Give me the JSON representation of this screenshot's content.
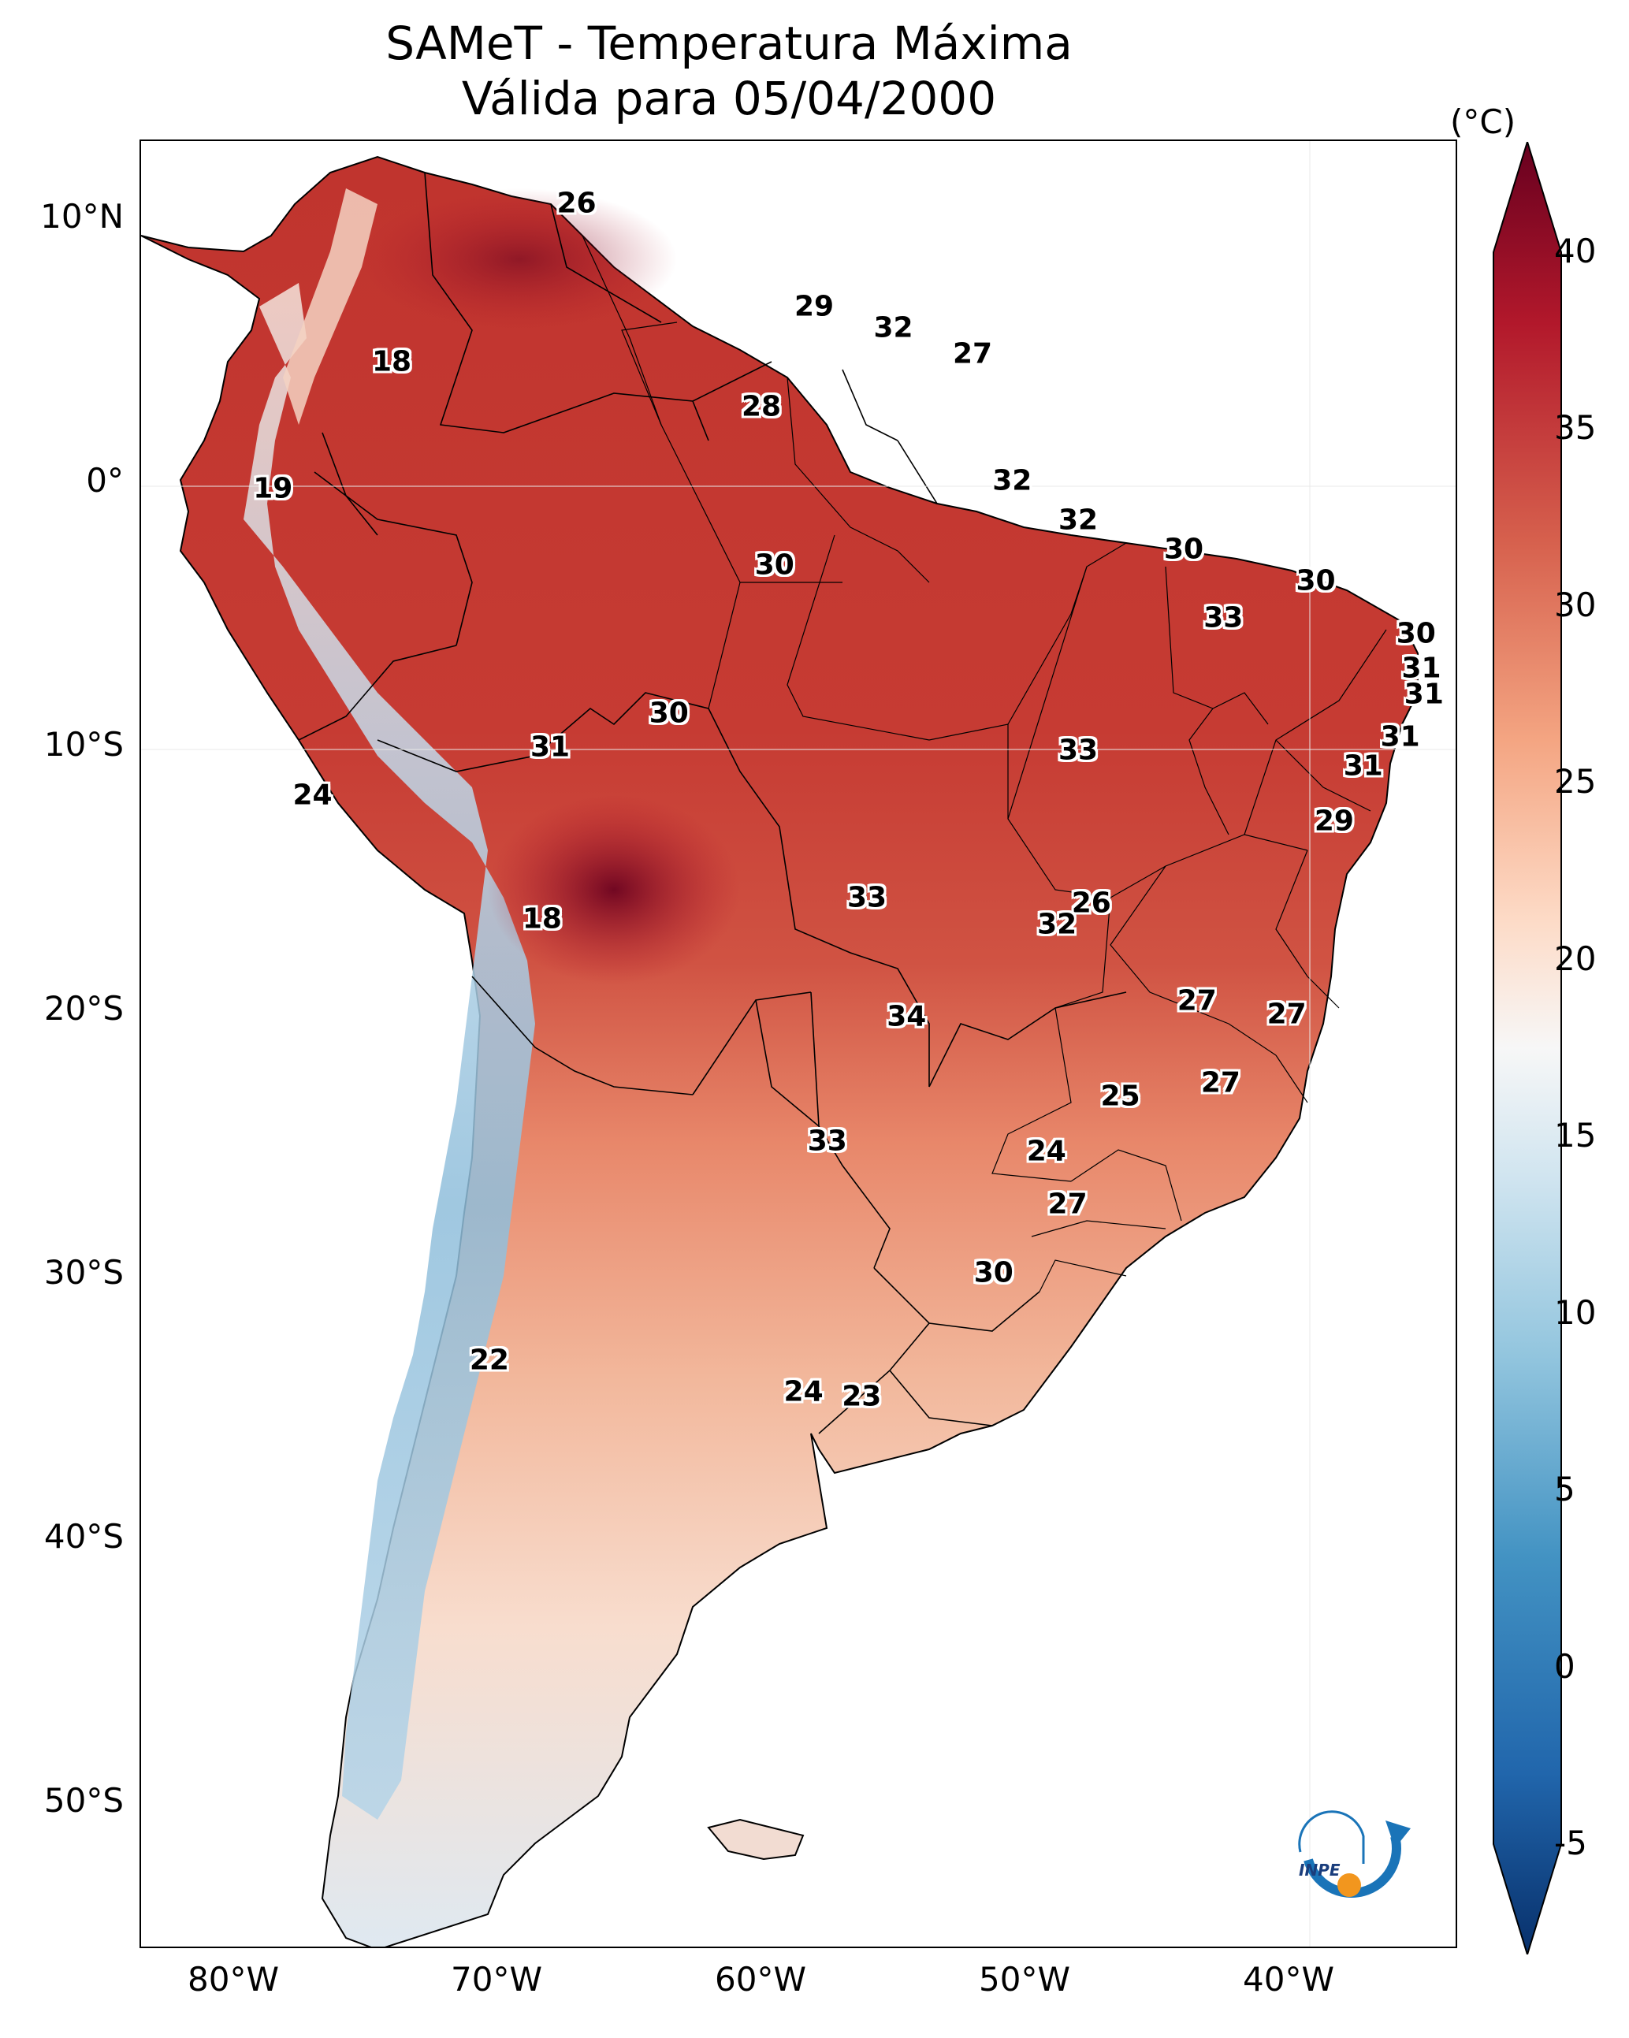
{
  "title": {
    "line1": "SAMeT - Temperatura Máxima",
    "line2": "Válida para 05/04/2000"
  },
  "axes": {
    "lat_labels": [
      "10°N",
      "0°",
      "10°S",
      "20°S",
      "30°S",
      "40°S",
      "50°S"
    ],
    "lon_labels": [
      "80°W",
      "70°W",
      "60°W",
      "50°W",
      "40°W"
    ]
  },
  "colorbar": {
    "unit": "(°C)",
    "ticks": [
      "40",
      "35",
      "30",
      "25",
      "20",
      "15",
      "10",
      "5",
      "0",
      "-5"
    ],
    "range": [
      -5,
      40
    ],
    "colors": [
      "#08306b",
      "#2166ac",
      "#4393c3",
      "#92c5de",
      "#d1e5f0",
      "#f7f7f7",
      "#fddbc7",
      "#f4a582",
      "#d6604d",
      "#b2182b",
      "#67001f"
    ]
  },
  "map_values": [
    {
      "value": "26",
      "lon": -67,
      "lat": 10.5
    },
    {
      "value": "18",
      "lon": -74,
      "lat": 4.5
    },
    {
      "value": "19",
      "lon": -78.5,
      "lat": -0.3
    },
    {
      "value": "29",
      "lon": -58,
      "lat": 6.6
    },
    {
      "value": "32",
      "lon": -55,
      "lat": 5.8
    },
    {
      "value": "27",
      "lon": -52,
      "lat": 4.8
    },
    {
      "value": "28",
      "lon": -60,
      "lat": 2.8
    },
    {
      "value": "32",
      "lon": -50.5,
      "lat": 0
    },
    {
      "value": "32",
      "lon": -48,
      "lat": -1.5
    },
    {
      "value": "30",
      "lon": -44,
      "lat": -2.6
    },
    {
      "value": "30",
      "lon": -39,
      "lat": -3.8
    },
    {
      "value": "30",
      "lon": -59.5,
      "lat": -3.2
    },
    {
      "value": "33",
      "lon": -42.5,
      "lat": -5.2
    },
    {
      "value": "30",
      "lon": -35.2,
      "lat": -5.8
    },
    {
      "value": "31",
      "lon": -35,
      "lat": -7.1
    },
    {
      "value": "31",
      "lon": -34.9,
      "lat": -8.1
    },
    {
      "value": "31",
      "lon": -35.8,
      "lat": -9.7
    },
    {
      "value": "31",
      "lon": -37.2,
      "lat": -10.8
    },
    {
      "value": "30",
      "lon": -63.5,
      "lat": -8.8
    },
    {
      "value": "31",
      "lon": -68,
      "lat": -10.1
    },
    {
      "value": "33",
      "lon": -48,
      "lat": -10.2
    },
    {
      "value": "24",
      "lon": -77,
      "lat": -11.9
    },
    {
      "value": "29",
      "lon": -38.3,
      "lat": -12.9
    },
    {
      "value": "33",
      "lon": -56,
      "lat": -15.8
    },
    {
      "value": "26",
      "lon": -47.5,
      "lat": -16
    },
    {
      "value": "32",
      "lon": -48.8,
      "lat": -16.8
    },
    {
      "value": "18",
      "lon": -68.3,
      "lat": -16.6
    },
    {
      "value": "27",
      "lon": -43.5,
      "lat": -19.7
    },
    {
      "value": "27",
      "lon": -40.1,
      "lat": -20.2
    },
    {
      "value": "34",
      "lon": -54.5,
      "lat": -20.3
    },
    {
      "value": "27",
      "lon": -42.6,
      "lat": -22.8
    },
    {
      "value": "25",
      "lon": -46.4,
      "lat": -23.3
    },
    {
      "value": "33",
      "lon": -57.5,
      "lat": -25
    },
    {
      "value": "24",
      "lon": -49.2,
      "lat": -25.4
    },
    {
      "value": "27",
      "lon": -48.4,
      "lat": -27.4
    },
    {
      "value": "30",
      "lon": -51.2,
      "lat": -30
    },
    {
      "value": "22",
      "lon": -70.3,
      "lat": -33.3
    },
    {
      "value": "24",
      "lon": -58.4,
      "lat": -34.5
    },
    {
      "value": "23",
      "lon": -56.2,
      "lat": -34.7
    }
  ],
  "logo": {
    "text": "INPE"
  }
}
